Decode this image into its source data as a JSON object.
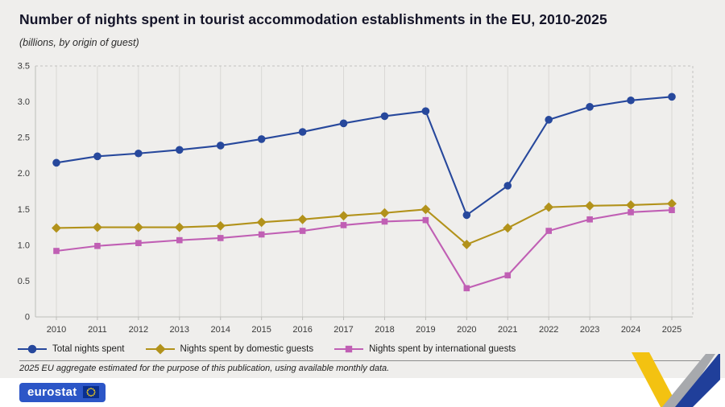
{
  "header": {
    "title": "Number of nights spent in tourist accommodation establishments in the EU, 2010-2025",
    "subtitle": "(billions, by origin of guest)"
  },
  "chart_data": {
    "type": "line",
    "x": [
      2010,
      2011,
      2012,
      2013,
      2014,
      2015,
      2016,
      2017,
      2018,
      2019,
      2020,
      2021,
      2022,
      2023,
      2024,
      2025
    ],
    "series": [
      {
        "name": "Total nights spent",
        "marker": "circle",
        "color": "#27489c",
        "values": [
          2.15,
          2.24,
          2.28,
          2.33,
          2.39,
          2.48,
          2.58,
          2.7,
          2.8,
          2.87,
          1.42,
          1.83,
          2.75,
          2.93,
          3.02,
          3.07
        ]
      },
      {
        "name": "Nights spent by domestic guests",
        "marker": "diamond",
        "color": "#b2921b",
        "values": [
          1.24,
          1.25,
          1.25,
          1.25,
          1.27,
          1.32,
          1.36,
          1.41,
          1.45,
          1.5,
          1.01,
          1.24,
          1.53,
          1.55,
          1.56,
          1.58
        ]
      },
      {
        "name": "Nights spent by international guests",
        "marker": "square",
        "color": "#c05fb4",
        "values": [
          0.92,
          0.99,
          1.03,
          1.07,
          1.1,
          1.15,
          1.2,
          1.28,
          1.33,
          1.35,
          0.4,
          0.58,
          1.2,
          1.36,
          1.46,
          1.49
        ]
      }
    ],
    "ylim": [
      0,
      3.5
    ],
    "yticks": [
      0,
      0.5,
      1.0,
      1.5,
      2.0,
      2.5,
      3.0,
      3.5
    ],
    "grid": "vertical",
    "legend_position": "bottom",
    "xlabel": "",
    "ylabel": ""
  },
  "footnote": "2025 EU aggregate estimated for the purpose of this publication, using available monthly data.",
  "footer": {
    "logo_text": "eurostat"
  }
}
